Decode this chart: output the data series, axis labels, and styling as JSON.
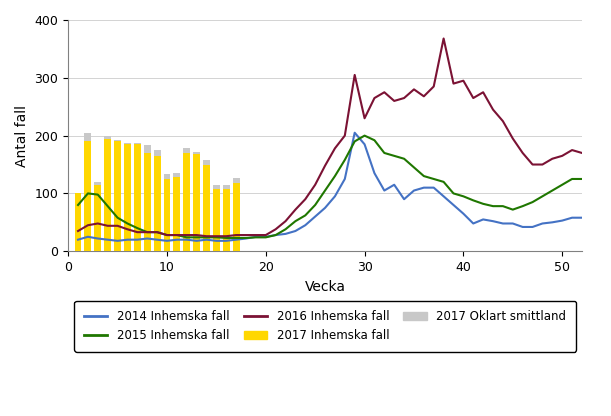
{
  "title": "",
  "xlabel": "Vecka",
  "ylabel": "Antal fall",
  "xlim": [
    0,
    52
  ],
  "ylim": [
    0,
    400
  ],
  "yticks": [
    0,
    100,
    200,
    300,
    400
  ],
  "xticks": [
    0,
    10,
    20,
    30,
    40,
    50
  ],
  "line_2014_color": "#4472C4",
  "line_2015_color": "#1F7700",
  "line_2016_color": "#7B1234",
  "bar_2017_color": "#FFD700",
  "bar_oklart_color": "#C8C8C8",
  "weeks_lines": [
    1,
    2,
    3,
    4,
    5,
    6,
    7,
    8,
    9,
    10,
    11,
    12,
    13,
    14,
    15,
    16,
    17,
    18,
    19,
    20,
    21,
    22,
    23,
    24,
    25,
    26,
    27,
    28,
    29,
    30,
    31,
    32,
    33,
    34,
    35,
    36,
    37,
    38,
    39,
    40,
    41,
    42,
    43,
    44,
    45,
    46,
    47,
    48,
    49,
    50,
    51,
    52
  ],
  "data_2014": [
    20,
    25,
    22,
    20,
    18,
    20,
    20,
    22,
    20,
    18,
    20,
    20,
    18,
    20,
    18,
    18,
    20,
    22,
    25,
    25,
    28,
    30,
    35,
    45,
    60,
    75,
    95,
    125,
    205,
    185,
    135,
    105,
    115,
    90,
    105,
    110,
    110,
    95,
    80,
    65,
    48,
    55,
    52,
    48,
    48,
    42,
    42,
    48,
    50,
    53,
    58,
    58
  ],
  "data_2015": [
    80,
    100,
    98,
    78,
    58,
    48,
    40,
    33,
    33,
    28,
    28,
    24,
    24,
    24,
    24,
    23,
    23,
    23,
    24,
    24,
    28,
    38,
    52,
    62,
    80,
    105,
    130,
    158,
    190,
    200,
    192,
    170,
    165,
    160,
    145,
    130,
    125,
    120,
    100,
    95,
    88,
    82,
    78,
    78,
    72,
    78,
    85,
    95,
    105,
    115,
    125,
    125
  ],
  "data_2016": [
    35,
    45,
    48,
    44,
    44,
    38,
    33,
    33,
    33,
    28,
    28,
    28,
    28,
    26,
    26,
    26,
    28,
    28,
    28,
    28,
    38,
    52,
    72,
    90,
    115,
    148,
    178,
    200,
    305,
    230,
    265,
    275,
    260,
    265,
    280,
    268,
    285,
    368,
    290,
    295,
    265,
    275,
    245,
    225,
    195,
    170,
    150,
    150,
    160,
    165,
    175,
    170
  ],
  "weeks_2017_bar": [
    1,
    2,
    3,
    4,
    5,
    6,
    7,
    8,
    9,
    10,
    11,
    12,
    13,
    14,
    15,
    16,
    17
  ],
  "data_2017_inhemska": [
    100,
    190,
    115,
    195,
    190,
    185,
    185,
    170,
    165,
    125,
    128,
    170,
    168,
    150,
    108,
    108,
    118
  ],
  "data_2017_oklart": [
    100,
    205,
    120,
    200,
    192,
    188,
    188,
    183,
    175,
    133,
    135,
    178,
    172,
    157,
    115,
    115,
    127
  ],
  "legend_labels": [
    "2014 Inhemska fall",
    "2015 Inhemska fall",
    "2016 Inhemska fall",
    "2017 Inhemska fall",
    "2017 Oklart smittland"
  ]
}
